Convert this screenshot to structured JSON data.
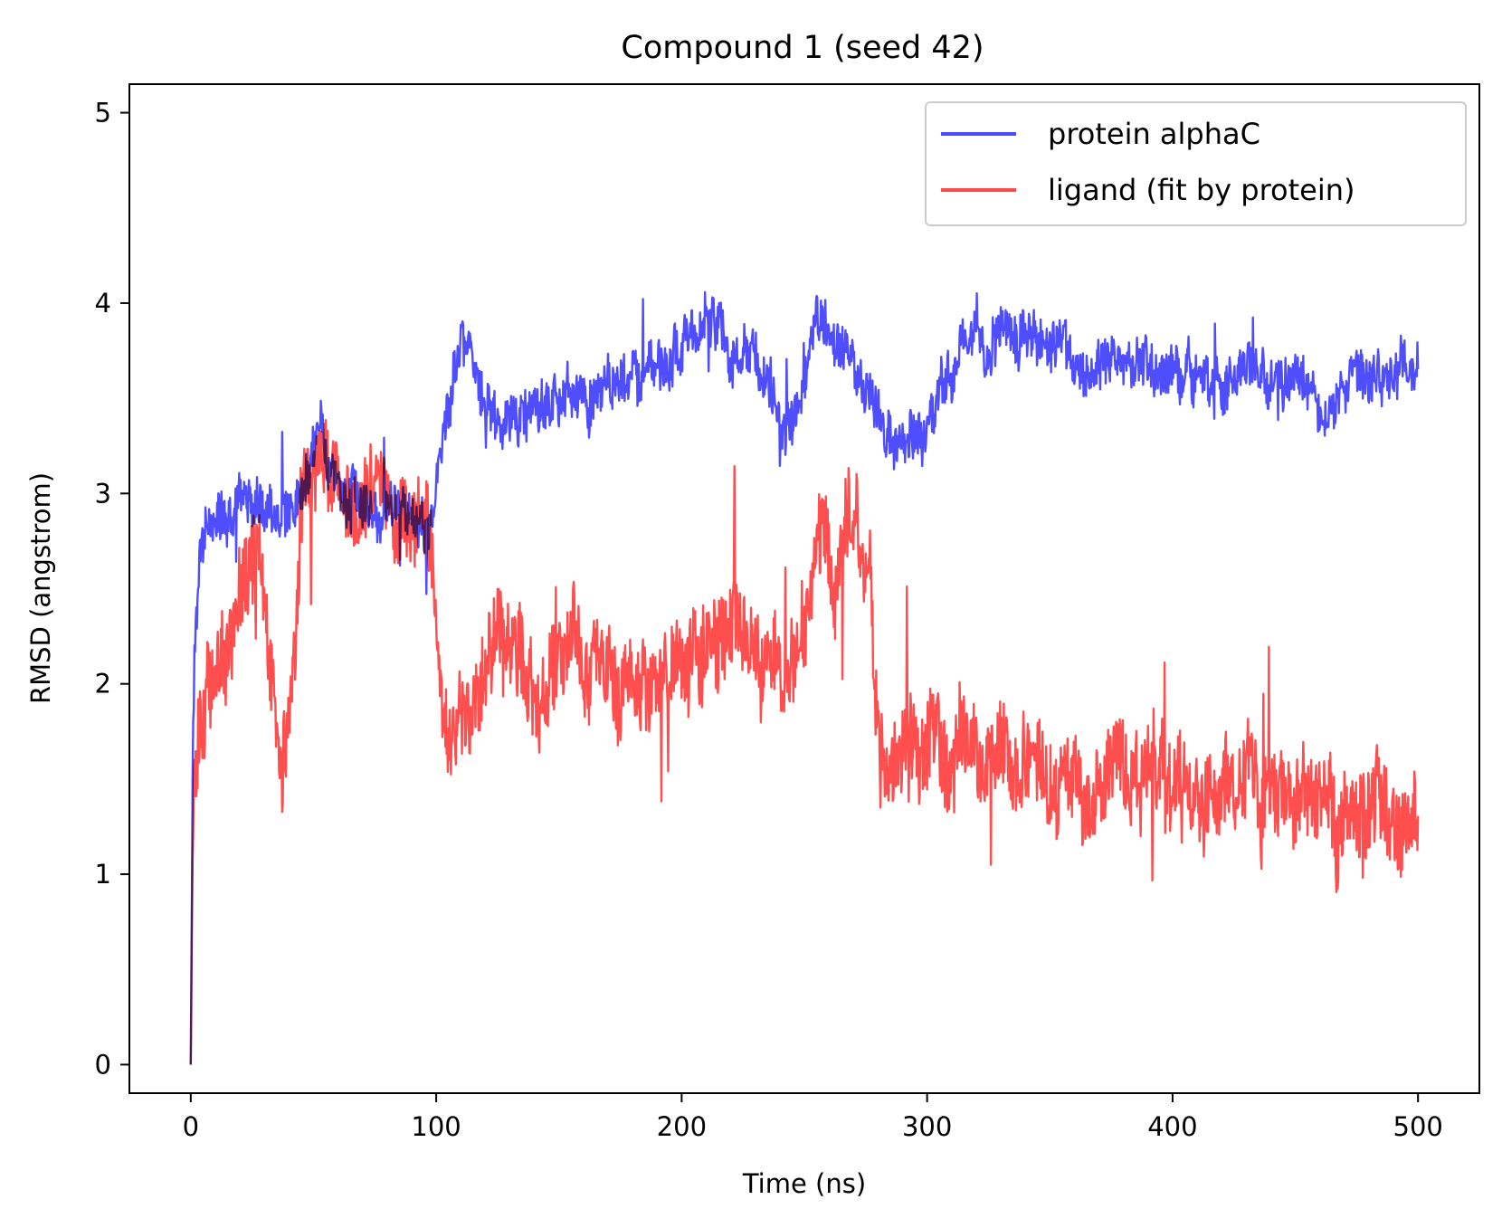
{
  "chart_data": {
    "type": "line",
    "title": "Compound 1 (seed 42)",
    "xlabel": "Time (ns)",
    "ylabel": "RMSD (angstrom)",
    "xlim": [
      -25,
      525
    ],
    "ylim": [
      -0.15,
      5.15
    ],
    "xticks": [
      0,
      100,
      200,
      300,
      400,
      500
    ],
    "yticks": [
      0,
      1,
      2,
      3,
      4,
      5
    ],
    "xtick_labels": [
      "0",
      "100",
      "200",
      "300",
      "400",
      "500"
    ],
    "ytick_labels": [
      "0",
      "1",
      "2",
      "3",
      "4",
      "5"
    ],
    "grid": false,
    "legend_position": "top-right",
    "series": [
      {
        "name": "protein alphaC",
        "color": "#4a4aff",
        "noise": 0.14,
        "seed": 7,
        "points": [
          [
            0,
            0
          ],
          [
            1,
            1.9
          ],
          [
            3,
            2.5
          ],
          [
            6,
            2.8
          ],
          [
            10,
            2.85
          ],
          [
            20,
            2.9
          ],
          [
            30,
            2.9
          ],
          [
            40,
            2.85
          ],
          [
            48,
            3.1
          ],
          [
            52,
            3.35
          ],
          [
            60,
            3.05
          ],
          [
            70,
            2.9
          ],
          [
            80,
            2.95
          ],
          [
            90,
            2.9
          ],
          [
            99,
            2.85
          ],
          [
            103,
            3.4
          ],
          [
            110,
            3.75
          ],
          [
            115,
            3.7
          ],
          [
            125,
            3.4
          ],
          [
            140,
            3.45
          ],
          [
            160,
            3.5
          ],
          [
            180,
            3.6
          ],
          [
            200,
            3.75
          ],
          [
            215,
            3.85
          ],
          [
            230,
            3.7
          ],
          [
            240,
            3.45
          ],
          [
            245,
            3.25
          ],
          [
            250,
            3.55
          ],
          [
            255,
            3.9
          ],
          [
            265,
            3.75
          ],
          [
            275,
            3.55
          ],
          [
            285,
            3.3
          ],
          [
            300,
            3.3
          ],
          [
            305,
            3.55
          ],
          [
            315,
            3.75
          ],
          [
            330,
            3.85
          ],
          [
            345,
            3.75
          ],
          [
            370,
            3.7
          ],
          [
            400,
            3.65
          ],
          [
            420,
            3.55
          ],
          [
            440,
            3.65
          ],
          [
            455,
            3.55
          ],
          [
            463,
            3.4
          ],
          [
            470,
            3.6
          ],
          [
            500,
            3.65
          ]
        ]
      },
      {
        "name": "ligand (fit by protein)",
        "color": "#ff4a4a",
        "noise": 0.26,
        "seed": 13,
        "points": [
          [
            0,
            0
          ],
          [
            1,
            1.5
          ],
          [
            3,
            1.7
          ],
          [
            8,
            1.95
          ],
          [
            15,
            2.25
          ],
          [
            22,
            2.75
          ],
          [
            28,
            2.7
          ],
          [
            33,
            1.95
          ],
          [
            38,
            1.75
          ],
          [
            42,
            2.2
          ],
          [
            46,
            3.05
          ],
          [
            52,
            3.3
          ],
          [
            58,
            3.0
          ],
          [
            65,
            2.85
          ],
          [
            75,
            2.95
          ],
          [
            85,
            2.85
          ],
          [
            95,
            2.8
          ],
          [
            100,
            2.55
          ],
          [
            103,
            1.95
          ],
          [
            110,
            1.85
          ],
          [
            125,
            2.05
          ],
          [
            140,
            2.1
          ],
          [
            160,
            2.05
          ],
          [
            180,
            2.0
          ],
          [
            200,
            2.1
          ],
          [
            220,
            2.15
          ],
          [
            240,
            2.2
          ],
          [
            250,
            2.3
          ],
          [
            256,
            2.75
          ],
          [
            262,
            2.55
          ],
          [
            270,
            2.85
          ],
          [
            277,
            2.45
          ],
          [
            280,
            1.65
          ],
          [
            300,
            1.6
          ],
          [
            320,
            1.7
          ],
          [
            340,
            1.55
          ],
          [
            360,
            1.45
          ],
          [
            380,
            1.5
          ],
          [
            400,
            1.5
          ],
          [
            420,
            1.45
          ],
          [
            440,
            1.5
          ],
          [
            455,
            1.55
          ],
          [
            465,
            1.3
          ],
          [
            480,
            1.25
          ],
          [
            500,
            1.35
          ]
        ]
      }
    ]
  }
}
